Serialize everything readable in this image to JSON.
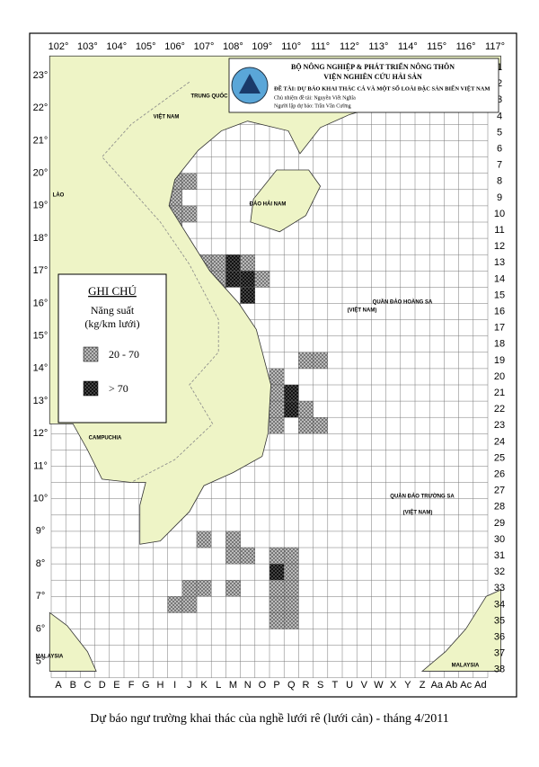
{
  "header": {
    "lines": [
      "BỘ NÔNG NGHIỆP & PHÁT TRIỂN NÔNG THÔN",
      "VIỆN NGHIÊN CỨU HẢI SẢN",
      "ĐỀ TÀI: DỰ BÁO KHAI THÁC CÁ VÀ MỘT SỐ LOÀI ĐẶC SẢN BIỂN VIỆT NAM",
      "Chủ nhiệm đề tài: Nguyễn Viết Nghĩa",
      "Người lập dự báo: Trần Văn Cường"
    ]
  },
  "axes": {
    "top": [
      "102°",
      "103°",
      "104°",
      "105°",
      "106°",
      "107°",
      "108°",
      "109°",
      "110°",
      "111°",
      "112°",
      "113°",
      "114°",
      "115°",
      "116°",
      "117°"
    ],
    "left": [
      "23°",
      "22°",
      "21°",
      "20°",
      "19°",
      "18°",
      "17°",
      "16°",
      "15°",
      "14°",
      "13°",
      "12°",
      "11°",
      "10°",
      "9°",
      "8°",
      "7°",
      "6°",
      "5°"
    ],
    "right": [
      "1",
      "2",
      "3",
      "4",
      "5",
      "6",
      "7",
      "8",
      "9",
      "10",
      "11",
      "12",
      "13",
      "14",
      "15",
      "16",
      "17",
      "18",
      "19",
      "20",
      "21",
      "22",
      "23",
      "24",
      "25",
      "26",
      "27",
      "28",
      "29",
      "30",
      "31",
      "32",
      "33",
      "34",
      "35",
      "36",
      "37",
      "38"
    ],
    "bottom": [
      "A",
      "B",
      "C",
      "D",
      "E",
      "F",
      "G",
      "H",
      "I",
      "J",
      "K",
      "L",
      "M",
      "N",
      "O",
      "P",
      "Q",
      "R",
      "S",
      "T",
      "U",
      "V",
      "W",
      "X",
      "Y",
      "Z",
      "Aa",
      "Ab",
      "Ac",
      "Ad"
    ]
  },
  "map_labels": [
    "TRUNG QUỐC",
    "VIỆT NAM",
    "LÀO",
    "CAMPUCHIA",
    "ĐẢO HẢI NAM",
    "QUẦN ĐẢO HOÀNG SA",
    "(VIỆT NAM)",
    "QUẦN ĐẢO TRƯỜNG SA",
    "(VIỆT NAM)",
    "MALAYSIA",
    "MALAYSIA"
  ],
  "legend": {
    "title": "GHI CHÚ",
    "subtitle": "Năng suất",
    "unit": "(kg/km lưới)",
    "items": [
      "20 - 70",
      "> 70"
    ]
  },
  "caption": "Dự báo ngư trường khai thác của nghề lưới rê (lưới cản) - tháng 4/2011"
}
